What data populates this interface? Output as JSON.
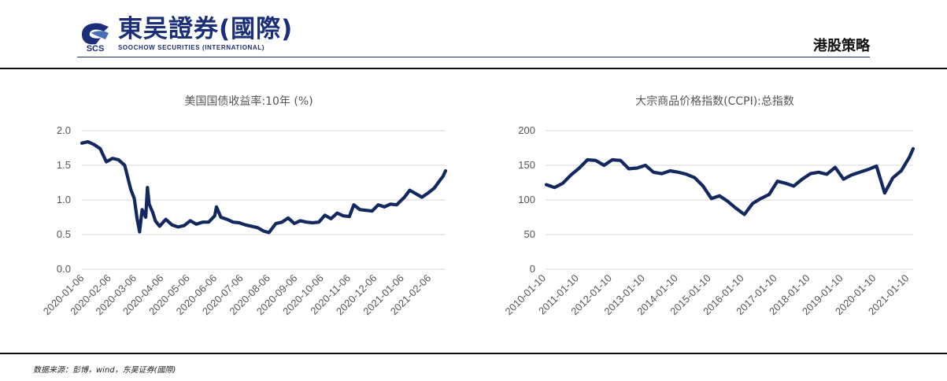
{
  "header": {
    "logo_cn": "東吴證券(國際)",
    "logo_en": "SOOCHOW SECURITIES (INTERNATIONAL)",
    "logo_mark_text": "SCS",
    "section_title": "港股策略",
    "brand_color": "#1a2f78"
  },
  "source_note": "数据来源：彭博，wind，东吴证券(國際)",
  "chart_data": [
    {
      "type": "line",
      "title": "美国国债收益率:10年 (%)",
      "xlabel": "",
      "ylabel": "",
      "ylim": [
        0,
        2.0
      ],
      "yticks": [
        0.0,
        0.5,
        1.0,
        1.5,
        2.0
      ],
      "ytick_labels": [
        "0.0",
        "0.5",
        "1.0",
        "1.5",
        "2.0"
      ],
      "xtick_labels": [
        "2020-01-06",
        "2020-02-06",
        "2020-03-06",
        "2020-04-06",
        "2020-05-06",
        "2020-06-06",
        "2020-07-06",
        "2020-08-06",
        "2020-09-06",
        "2020-10-06",
        "2020-11-06",
        "2020-12-06",
        "2021-01-06",
        "2021-02-06"
      ],
      "grid": true,
      "legend": "none",
      "color": "#13285e",
      "series": [
        {
          "x": [
            "2020-01-03",
            "2020-01-10",
            "2020-01-17",
            "2020-01-24",
            "2020-01-31",
            "2020-02-07",
            "2020-02-14",
            "2020-02-21",
            "2020-02-28",
            "2020-03-03",
            "2020-03-06",
            "2020-03-09",
            "2020-03-12",
            "2020-03-16",
            "2020-03-18",
            "2020-03-20",
            "2020-03-24",
            "2020-03-27",
            "2020-04-01",
            "2020-04-08",
            "2020-04-15",
            "2020-04-22",
            "2020-04-29",
            "2020-05-06",
            "2020-05-13",
            "2020-05-20",
            "2020-05-27",
            "2020-06-03",
            "2020-06-05",
            "2020-06-10",
            "2020-06-17",
            "2020-06-24",
            "2020-07-01",
            "2020-07-08",
            "2020-07-15",
            "2020-07-22",
            "2020-07-29",
            "2020-08-04",
            "2020-08-12",
            "2020-08-19",
            "2020-08-26",
            "2020-09-02",
            "2020-09-09",
            "2020-09-16",
            "2020-09-23",
            "2020-09-30",
            "2020-10-07",
            "2020-10-14",
            "2020-10-21",
            "2020-10-28",
            "2020-11-04",
            "2020-11-09",
            "2020-11-16",
            "2020-11-23",
            "2020-11-30",
            "2020-12-07",
            "2020-12-14",
            "2020-12-21",
            "2020-12-28",
            "2021-01-06",
            "2021-01-12",
            "2021-01-19",
            "2021-01-26",
            "2021-02-02",
            "2021-02-09",
            "2021-02-16",
            "2021-02-19",
            "2021-02-22"
          ],
          "values": [
            1.82,
            1.84,
            1.8,
            1.74,
            1.55,
            1.6,
            1.58,
            1.5,
            1.15,
            1.02,
            0.74,
            0.54,
            0.86,
            0.75,
            1.18,
            0.94,
            0.82,
            0.7,
            0.62,
            0.72,
            0.64,
            0.61,
            0.63,
            0.7,
            0.65,
            0.68,
            0.68,
            0.77,
            0.9,
            0.75,
            0.72,
            0.68,
            0.67,
            0.64,
            0.62,
            0.6,
            0.55,
            0.53,
            0.66,
            0.68,
            0.74,
            0.66,
            0.7,
            0.68,
            0.67,
            0.68,
            0.78,
            0.73,
            0.81,
            0.77,
            0.76,
            0.93,
            0.86,
            0.85,
            0.84,
            0.93,
            0.9,
            0.94,
            0.93,
            1.04,
            1.14,
            1.09,
            1.04,
            1.1,
            1.17,
            1.29,
            1.34,
            1.42
          ]
        }
      ],
      "xrange": [
        "2020-01-03",
        "2021-02-22"
      ]
    },
    {
      "type": "line",
      "title": "大宗商品价格指数(CCPI):总指数",
      "xlabel": "",
      "ylabel": "",
      "ylim": [
        0,
        200
      ],
      "yticks": [
        0,
        50,
        100,
        150,
        200
      ],
      "ytick_labels": [
        "0",
        "50",
        "100",
        "150",
        "200"
      ],
      "xtick_labels": [
        "2010-01-10",
        "2011-01-10",
        "2012-01-10",
        "2013-01-10",
        "2014-01-10",
        "2015-01-10",
        "2016-01-10",
        "2017-01-10",
        "2018-01-10",
        "2019-01-10",
        "2020-01-10",
        "2021-01-10"
      ],
      "grid": true,
      "legend": "none",
      "color": "#13285e",
      "series": [
        {
          "x": [
            "2010-01-10",
            "2010-04-10",
            "2010-07-10",
            "2010-10-10",
            "2011-01-10",
            "2011-04-10",
            "2011-07-10",
            "2011-10-10",
            "2012-01-10",
            "2012-04-10",
            "2012-07-10",
            "2012-10-10",
            "2013-01-10",
            "2013-04-10",
            "2013-07-10",
            "2013-10-10",
            "2014-01-10",
            "2014-04-10",
            "2014-07-10",
            "2014-10-10",
            "2015-01-10",
            "2015-04-10",
            "2015-07-10",
            "2015-10-10",
            "2016-01-10",
            "2016-04-10",
            "2016-07-10",
            "2016-10-10",
            "2017-01-10",
            "2017-04-10",
            "2017-07-10",
            "2017-10-10",
            "2018-01-10",
            "2018-04-10",
            "2018-07-10",
            "2018-10-10",
            "2019-01-10",
            "2019-04-10",
            "2019-07-10",
            "2019-10-10",
            "2020-01-10",
            "2020-04-10",
            "2020-07-10",
            "2020-10-10",
            "2021-01-10",
            "2021-02-19"
          ],
          "values": [
            122,
            118,
            124,
            136,
            146,
            158,
            157,
            150,
            158,
            157,
            145,
            146,
            150,
            140,
            138,
            142,
            140,
            137,
            132,
            120,
            102,
            106,
            98,
            88,
            79,
            95,
            102,
            108,
            127,
            124,
            120,
            130,
            138,
            140,
            137,
            147,
            130,
            136,
            140,
            144,
            149,
            110,
            132,
            142,
            162,
            174
          ]
        }
      ],
      "xrange": [
        "2010-01-10",
        "2021-02-19"
      ]
    }
  ]
}
